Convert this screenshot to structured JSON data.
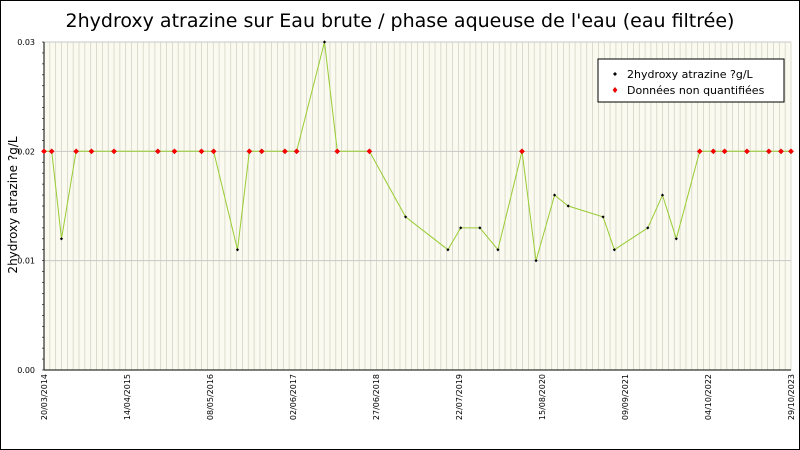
{
  "chart_data": {
    "type": "line",
    "title": "2hydroxy atrazine sur Eau brute / phase aqueuse de l'eau (eau filtrée)",
    "ylabel": "2hydroxy atrazine ?g/L",
    "xlabel": "",
    "ylim": [
      0,
      0.03
    ],
    "xlim": [
      "2014-03-20",
      "2023-10-29"
    ],
    "yticks": [
      "0.00",
      "0.01",
      "0.02",
      "0.03"
    ],
    "xticks": [
      {
        "date": "2014-03-20",
        "label": "20/03/2014"
      },
      {
        "date": "2015-04-14",
        "label": "14/04/2015"
      },
      {
        "date": "2016-05-08",
        "label": "08/05/2016"
      },
      {
        "date": "2017-06-02",
        "label": "02/06/2017"
      },
      {
        "date": "2018-06-27",
        "label": "27/06/2018"
      },
      {
        "date": "2019-07-22",
        "label": "22/07/2019"
      },
      {
        "date": "2020-08-15",
        "label": "15/08/2020"
      },
      {
        "date": "2021-09-09",
        "label": "09/09/2021"
      },
      {
        "date": "2022-10-04",
        "label": "04/10/2022"
      },
      {
        "date": "2023-10-29",
        "label": "29/10/2023"
      }
    ],
    "grid": true,
    "legend_position": "top-right",
    "line_color": "#99cc33",
    "series": [
      {
        "name": "2hydroxy atrazine ?g/L",
        "marker_color": "#000000"
      },
      {
        "name": "Données non quantifiées",
        "marker_color": "#ff0000"
      }
    ],
    "points": [
      {
        "x": "2014-03-20",
        "y": 0.02,
        "q": false
      },
      {
        "x": "2014-04-25",
        "y": 0.02,
        "q": false
      },
      {
        "x": "2014-06-10",
        "y": 0.012,
        "q": true
      },
      {
        "x": "2014-08-18",
        "y": 0.02,
        "q": false
      },
      {
        "x": "2014-10-29",
        "y": 0.02,
        "q": false
      },
      {
        "x": "2015-02-12",
        "y": 0.02,
        "q": false
      },
      {
        "x": "2015-09-06",
        "y": 0.02,
        "q": false
      },
      {
        "x": "2015-11-23",
        "y": 0.02,
        "q": false
      },
      {
        "x": "2016-03-29",
        "y": 0.02,
        "q": false
      },
      {
        "x": "2016-05-25",
        "y": 0.02,
        "q": false
      },
      {
        "x": "2016-09-14",
        "y": 0.011,
        "q": true
      },
      {
        "x": "2016-11-09",
        "y": 0.02,
        "q": false
      },
      {
        "x": "2017-01-06",
        "y": 0.02,
        "q": false
      },
      {
        "x": "2017-04-25",
        "y": 0.02,
        "q": false
      },
      {
        "x": "2017-06-19",
        "y": 0.02,
        "q": false
      },
      {
        "x": "2017-10-28",
        "y": 0.03,
        "q": true
      },
      {
        "x": "2017-12-27",
        "y": 0.02,
        "q": false
      },
      {
        "x": "2018-05-27",
        "y": 0.02,
        "q": false
      },
      {
        "x": "2018-11-13",
        "y": 0.014,
        "q": true
      },
      {
        "x": "2019-05-31",
        "y": 0.011,
        "q": true
      },
      {
        "x": "2019-07-30",
        "y": 0.013,
        "q": true
      },
      {
        "x": "2019-10-28",
        "y": 0.013,
        "q": true
      },
      {
        "x": "2020-01-21",
        "y": 0.011,
        "q": true
      },
      {
        "x": "2020-05-13",
        "y": 0.02,
        "q": false
      },
      {
        "x": "2020-07-18",
        "y": 0.01,
        "q": true
      },
      {
        "x": "2020-10-13",
        "y": 0.016,
        "q": true
      },
      {
        "x": "2020-12-16",
        "y": 0.015,
        "q": true
      },
      {
        "x": "2021-05-29",
        "y": 0.014,
        "q": true
      },
      {
        "x": "2021-07-21",
        "y": 0.011,
        "q": true
      },
      {
        "x": "2021-12-25",
        "y": 0.013,
        "q": true
      },
      {
        "x": "2022-03-04",
        "y": 0.016,
        "q": true
      },
      {
        "x": "2022-05-08",
        "y": 0.012,
        "q": true
      },
      {
        "x": "2022-08-26",
        "y": 0.02,
        "q": false
      },
      {
        "x": "2022-10-29",
        "y": 0.02,
        "q": false
      },
      {
        "x": "2022-12-21",
        "y": 0.02,
        "q": false
      },
      {
        "x": "2023-04-05",
        "y": 0.02,
        "q": false
      },
      {
        "x": "2023-07-17",
        "y": 0.02,
        "q": false
      },
      {
        "x": "2023-09-12",
        "y": 0.02,
        "q": false
      },
      {
        "x": "2023-10-29",
        "y": 0.02,
        "q": false
      }
    ]
  }
}
